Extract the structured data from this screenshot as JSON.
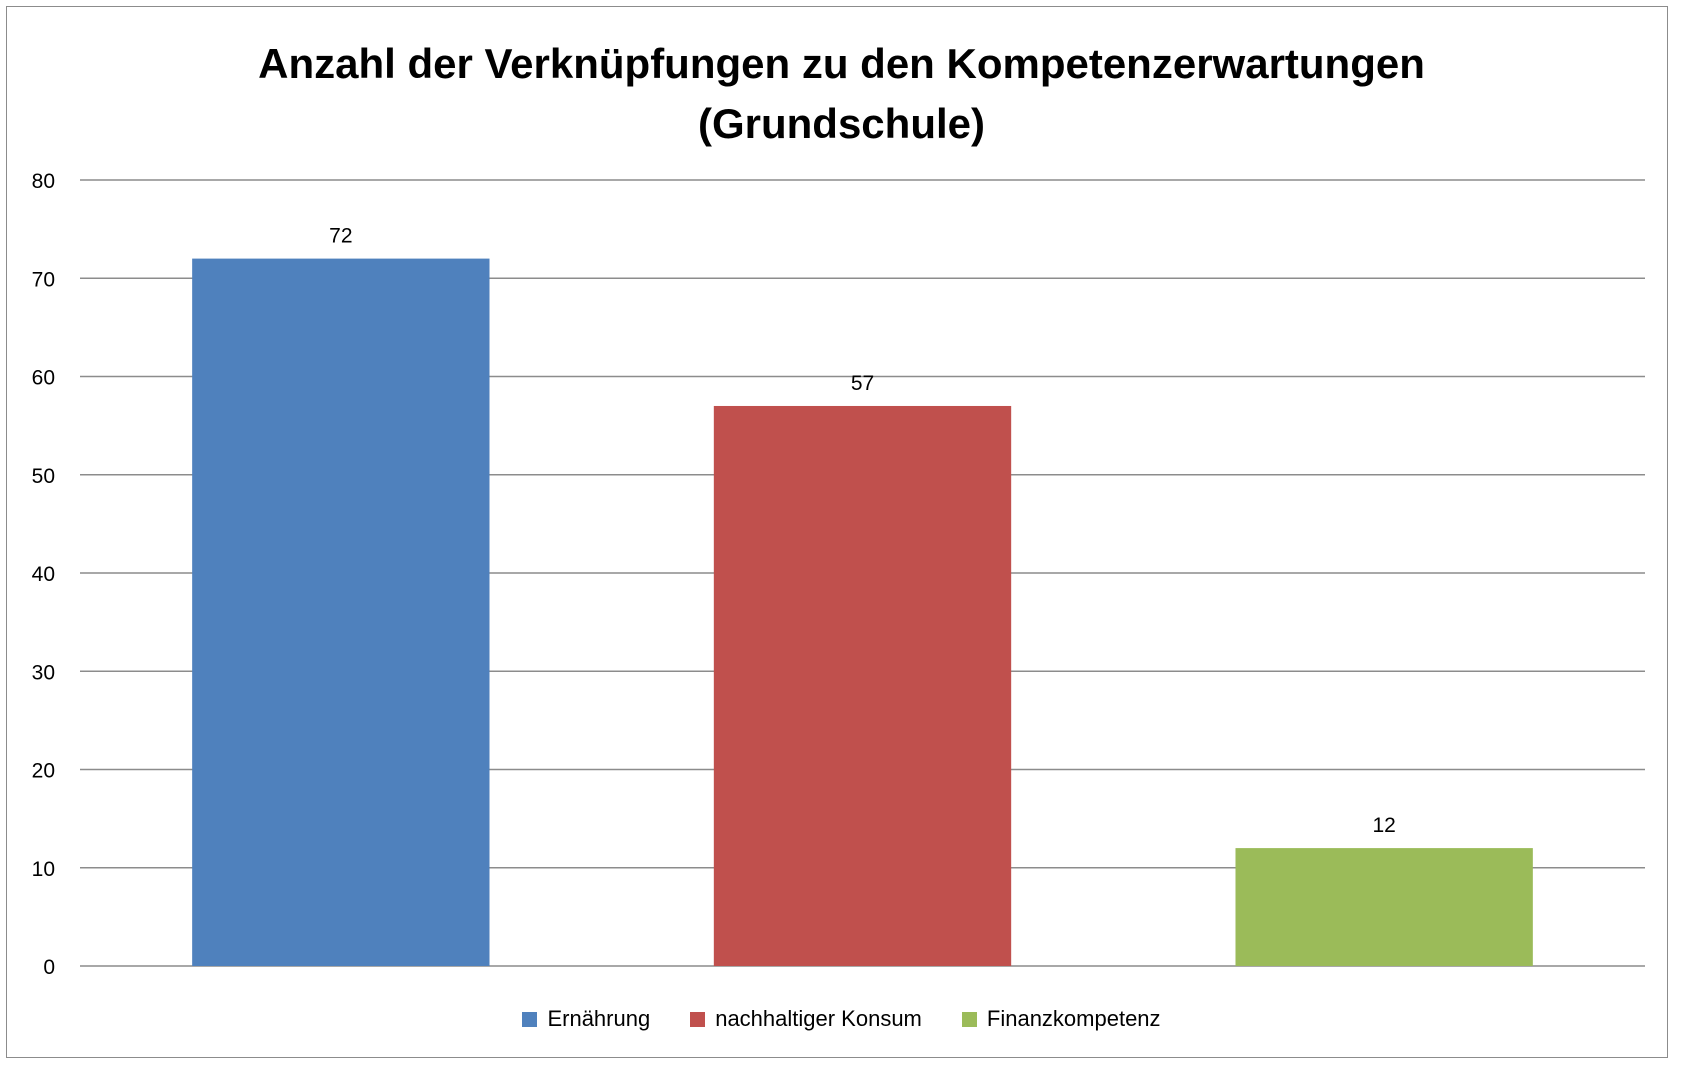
{
  "chart_data": {
    "type": "bar",
    "title_lines": [
      "Anzahl der Verknüpfungen zu den Kompetenzerwartungen",
      "(Grundschule)"
    ],
    "xlabel": "",
    "ylabel": "",
    "ylim": [
      0,
      80
    ],
    "yticks": [
      0,
      10,
      20,
      30,
      40,
      50,
      60,
      70,
      80
    ],
    "grid": true,
    "legend_position": "bottom",
    "series": [
      {
        "name": "Ernährung",
        "value": 72,
        "color": "#4f81bd"
      },
      {
        "name": "nachhaltiger Konsum",
        "value": 57,
        "color": "#c0504d"
      },
      {
        "name": "Finanzkompetenz",
        "value": 12,
        "color": "#9bbb59"
      }
    ]
  }
}
